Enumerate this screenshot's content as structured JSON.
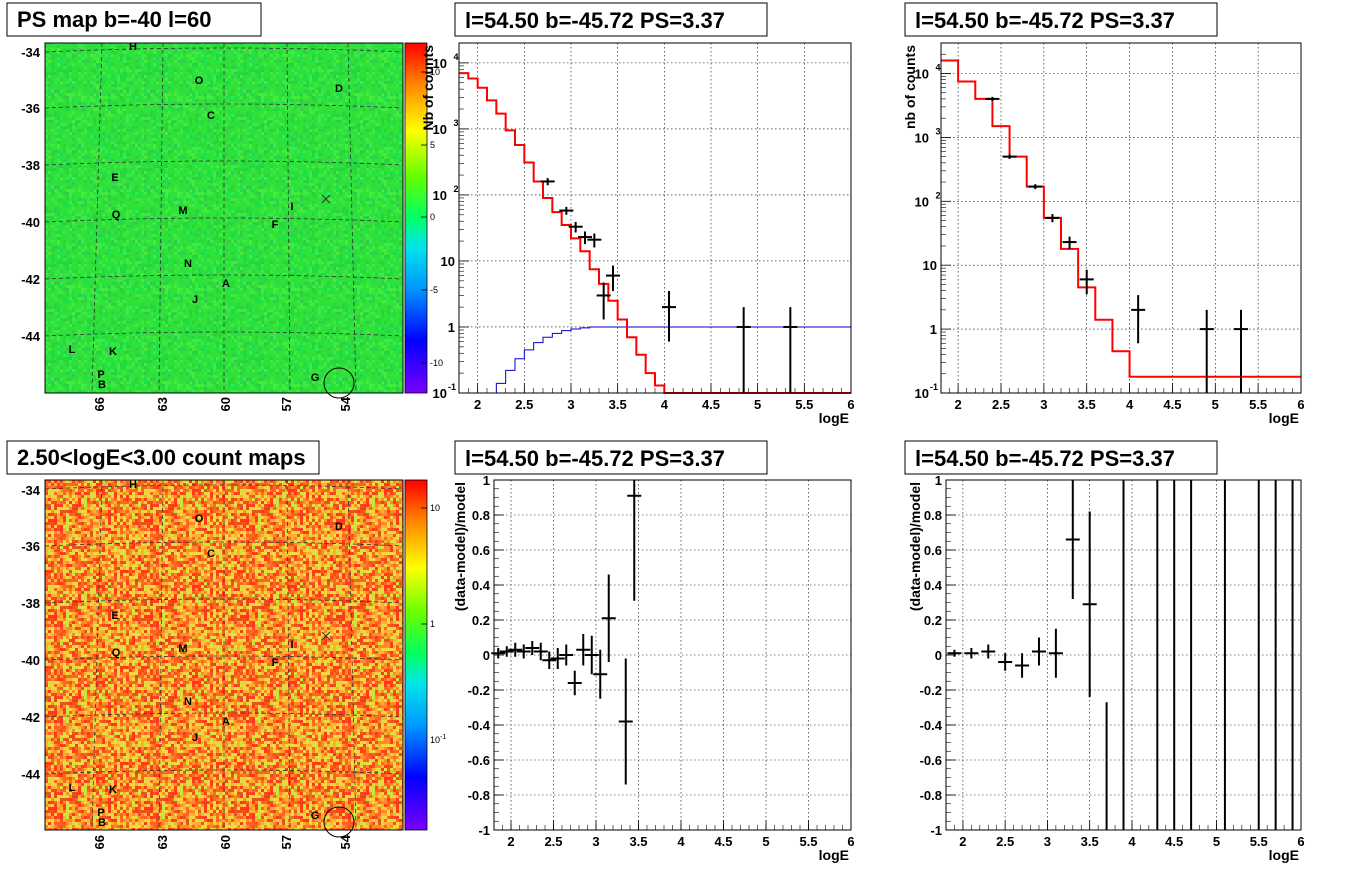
{
  "panels": {
    "map_top": {
      "title": "PS map b=-40 l=60",
      "lat_ticks": [
        "-34",
        "-36",
        "-38",
        "-40",
        "-42",
        "-44"
      ],
      "lon_ticks": [
        "66",
        "63",
        "60",
        "57",
        "54"
      ],
      "colorbar_ticks": [
        "10",
        "5",
        "0",
        "-5",
        "-10"
      ],
      "base_color": "#2ee23a"
    },
    "map_bottom": {
      "title": "2.50<logE<3.00 count maps",
      "lat_ticks": [
        "-34",
        "-36",
        "-38",
        "-40",
        "-42",
        "-44"
      ],
      "lon_ticks": [
        "66",
        "63",
        "60",
        "57",
        "54"
      ],
      "colorbar_ticks": [
        "10",
        "1"
      ],
      "colorbar_exp_label": "10",
      "colorbar_exp_sup": "-1",
      "base_color": "#f07a22"
    },
    "sources": [
      {
        "label": "H"
      },
      {
        "label": "O"
      },
      {
        "label": "D"
      },
      {
        "label": "C"
      },
      {
        "label": "E"
      },
      {
        "label": "Q"
      },
      {
        "label": "M"
      },
      {
        "label": "I"
      },
      {
        "label": "F"
      },
      {
        "label": "N"
      },
      {
        "label": "A"
      },
      {
        "label": "J"
      },
      {
        "label": "L"
      },
      {
        "label": "K"
      },
      {
        "label": "P"
      },
      {
        "label": "B"
      },
      {
        "label": "G"
      }
    ]
  },
  "chart_data": [
    {
      "type": "line",
      "title": "l=54.50 b=-45.72 PS=3.37",
      "xlabel": "logE",
      "ylabel": "Nb of counts",
      "xlim": [
        1.8,
        6
      ],
      "ylim": [
        0.1,
        20000
      ],
      "yscale": "log",
      "grid": true,
      "x_ticks": [
        "2",
        "2.5",
        "3",
        "3.5",
        "4",
        "4.5",
        "5",
        "5.5",
        "6"
      ],
      "y_ticks": [
        {
          "v": 0.1,
          "t": "10",
          "sup": "-1"
        },
        {
          "v": 1,
          "t": "1"
        },
        {
          "v": 10,
          "t": "10"
        },
        {
          "v": 100,
          "t": "10",
          "sup": "2"
        },
        {
          "v": 1000,
          "t": "10",
          "sup": "3"
        },
        {
          "v": 10000,
          "t": "10",
          "sup": "4"
        }
      ],
      "model_red": {
        "color": "#ff0000",
        "edges": [
          1.8,
          1.9,
          2.0,
          2.1,
          2.2,
          2.3,
          2.4,
          2.5,
          2.6,
          2.7,
          2.8,
          2.9,
          3.0,
          3.1,
          3.2,
          3.3,
          3.4,
          3.5,
          3.6,
          3.7,
          3.8,
          3.9,
          4.0,
          4.1,
          4.2
        ],
        "values": [
          7000,
          5800,
          4200,
          2700,
          1700,
          950,
          570,
          310,
          160,
          90,
          55,
          35,
          22,
          14,
          7.5,
          4.5,
          2.5,
          1.3,
          0.7,
          0.38,
          0.2,
          0.13,
          0.1,
          0.1
        ]
      },
      "model_blue": {
        "color": "#0000cc",
        "edges": [
          2.1,
          2.2,
          2.3,
          2.4,
          2.5,
          2.6,
          2.7,
          2.8,
          2.9,
          3.0,
          3.1,
          3.2,
          3.3
        ],
        "values": [
          0.1,
          0.14,
          0.22,
          0.33,
          0.45,
          0.58,
          0.7,
          0.8,
          0.88,
          0.93,
          0.97,
          1.0
        ],
        "flat_value": 1.0
      },
      "data_points": [
        {
          "x": 2.75,
          "y": 160,
          "lo": 140,
          "hi": 180
        },
        {
          "x": 2.95,
          "y": 58,
          "lo": 50,
          "hi": 66
        },
        {
          "x": 3.05,
          "y": 33,
          "lo": 27,
          "hi": 39
        },
        {
          "x": 3.15,
          "y": 23,
          "lo": 18,
          "hi": 28
        },
        {
          "x": 3.25,
          "y": 21,
          "lo": 16,
          "hi": 26
        },
        {
          "x": 3.35,
          "y": 3,
          "lo": 1.3,
          "hi": 4.7
        },
        {
          "x": 3.45,
          "y": 6,
          "lo": 3.5,
          "hi": 8.5
        },
        {
          "x": 4.05,
          "y": 2,
          "lo": 0.6,
          "hi": 3.5
        },
        {
          "x": 4.85,
          "y": 1,
          "lo": 0.1,
          "hi": 2
        },
        {
          "x": 5.35,
          "y": 1,
          "lo": 0.1,
          "hi": 2
        }
      ]
    },
    {
      "type": "line",
      "title": "l=54.50 b=-45.72 PS=3.37",
      "xlabel": "logE",
      "ylabel": "nb of counts",
      "xlim": [
        1.8,
        6
      ],
      "ylim": [
        0.1,
        30000
      ],
      "yscale": "log",
      "grid": true,
      "x_ticks": [
        "2",
        "2.5",
        "3",
        "3.5",
        "4",
        "4.5",
        "5",
        "5.5",
        "6"
      ],
      "y_ticks": [
        {
          "v": 0.1,
          "t": "10",
          "sup": "-1"
        },
        {
          "v": 1,
          "t": "1"
        },
        {
          "v": 10,
          "t": "10"
        },
        {
          "v": 100,
          "t": "10",
          "sup": "2"
        },
        {
          "v": 1000,
          "t": "10",
          "sup": "3"
        },
        {
          "v": 10000,
          "t": "10",
          "sup": "4"
        }
      ],
      "model_red": {
        "color": "#ff0000",
        "edges": [
          1.8,
          2.0,
          2.2,
          2.4,
          2.6,
          2.8,
          3.0,
          3.2,
          3.4,
          3.6,
          3.8,
          4.0,
          4.2
        ],
        "values": [
          16000,
          7500,
          4000,
          1500,
          500,
          170,
          55,
          18,
          4.5,
          1.4,
          0.45,
          0.18
        ]
      },
      "data_points": [
        {
          "x": 2.4,
          "y": 4000,
          "lo": 3700,
          "hi": 4300
        },
        {
          "x": 2.6,
          "y": 500,
          "lo": 460,
          "hi": 540
        },
        {
          "x": 2.9,
          "y": 170,
          "lo": 155,
          "hi": 185
        },
        {
          "x": 3.1,
          "y": 55,
          "lo": 47,
          "hi": 63
        },
        {
          "x": 3.3,
          "y": 23,
          "lo": 18,
          "hi": 28
        },
        {
          "x": 3.5,
          "y": 6,
          "lo": 3.5,
          "hi": 8.5
        },
        {
          "x": 4.1,
          "y": 2,
          "lo": 0.6,
          "hi": 3.4
        },
        {
          "x": 4.9,
          "y": 1,
          "lo": 0.1,
          "hi": 2
        },
        {
          "x": 5.3,
          "y": 1,
          "lo": 0.1,
          "hi": 2
        }
      ]
    },
    {
      "type": "scatter",
      "title": "l=54.50 b=-45.72 PS=3.37",
      "xlabel": "logE",
      "ylabel": "(data-model)/model",
      "xlim": [
        1.8,
        6
      ],
      "ylim": [
        -1,
        1
      ],
      "grid": true,
      "x_ticks": [
        "2",
        "2.5",
        "3",
        "3.5",
        "4",
        "4.5",
        "5",
        "5.5",
        "6"
      ],
      "y_ticks": [
        "-1",
        "-0.8",
        "-0.6",
        "-0.4",
        "-0.2",
        "0",
        "0.2",
        "0.4",
        "0.6",
        "0.8",
        "1"
      ],
      "data_points": [
        {
          "x": 1.85,
          "y": 0.01,
          "e": 0.03
        },
        {
          "x": 1.95,
          "y": 0.02,
          "e": 0.03
        },
        {
          "x": 2.05,
          "y": 0.03,
          "e": 0.04
        },
        {
          "x": 2.15,
          "y": 0.02,
          "e": 0.04
        },
        {
          "x": 2.25,
          "y": 0.04,
          "e": 0.04
        },
        {
          "x": 2.35,
          "y": 0.02,
          "e": 0.05
        },
        {
          "x": 2.45,
          "y": -0.03,
          "e": 0.05
        },
        {
          "x": 2.55,
          "y": -0.02,
          "e": 0.06
        },
        {
          "x": 2.65,
          "y": 0.0,
          "e": 0.06
        },
        {
          "x": 2.75,
          "y": -0.16,
          "e": 0.07
        },
        {
          "x": 2.85,
          "y": 0.03,
          "e": 0.09
        },
        {
          "x": 2.95,
          "y": 0.0,
          "e": 0.11
        },
        {
          "x": 3.05,
          "y": -0.11,
          "e": 0.14
        },
        {
          "x": 3.15,
          "y": 0.21,
          "e": 0.25
        },
        {
          "x": 3.35,
          "y": -0.38,
          "e": 0.36
        },
        {
          "x": 3.45,
          "y": 0.91,
          "e": 0.6
        }
      ]
    },
    {
      "type": "scatter",
      "title": "l=54.50 b=-45.72 PS=3.37",
      "xlabel": "logE",
      "ylabel": "(data-model)/model",
      "xlim": [
        1.8,
        6
      ],
      "ylim": [
        -1,
        1
      ],
      "grid": true,
      "x_ticks": [
        "2",
        "2.5",
        "3",
        "3.5",
        "4",
        "4.5",
        "5",
        "5.5",
        "6"
      ],
      "y_ticks": [
        "-1",
        "-0.8",
        "-0.6",
        "-0.4",
        "-0.2",
        "0",
        "0.2",
        "0.4",
        "0.6",
        "0.8",
        "1"
      ],
      "data_points": [
        {
          "x": 1.9,
          "y": 0.01,
          "e": 0.02
        },
        {
          "x": 2.1,
          "y": 0.01,
          "e": 0.03
        },
        {
          "x": 2.3,
          "y": 0.02,
          "e": 0.04
        },
        {
          "x": 2.5,
          "y": -0.04,
          "e": 0.05
        },
        {
          "x": 2.7,
          "y": -0.06,
          "e": 0.07
        },
        {
          "x": 2.9,
          "y": 0.02,
          "e": 0.08
        },
        {
          "x": 3.1,
          "y": 0.01,
          "e": 0.14
        },
        {
          "x": 3.3,
          "y": 0.66,
          "e": 0.34
        },
        {
          "x": 3.5,
          "y": 0.29,
          "e": 0.53
        },
        {
          "x": 3.7,
          "y": -1.0,
          "e": 0.73,
          "upper": true
        },
        {
          "x": 3.9,
          "y": 0,
          "full": true
        },
        {
          "x": 4.3,
          "y": 0,
          "full": true
        },
        {
          "x": 4.5,
          "y": 0,
          "full": true
        },
        {
          "x": 4.7,
          "y": 0,
          "full": true
        },
        {
          "x": 5.1,
          "y": 0,
          "full": true
        },
        {
          "x": 5.5,
          "y": 0,
          "full": true
        },
        {
          "x": 5.7,
          "y": 0,
          "full": true
        },
        {
          "x": 5.9,
          "y": 0,
          "full": true
        }
      ]
    }
  ]
}
